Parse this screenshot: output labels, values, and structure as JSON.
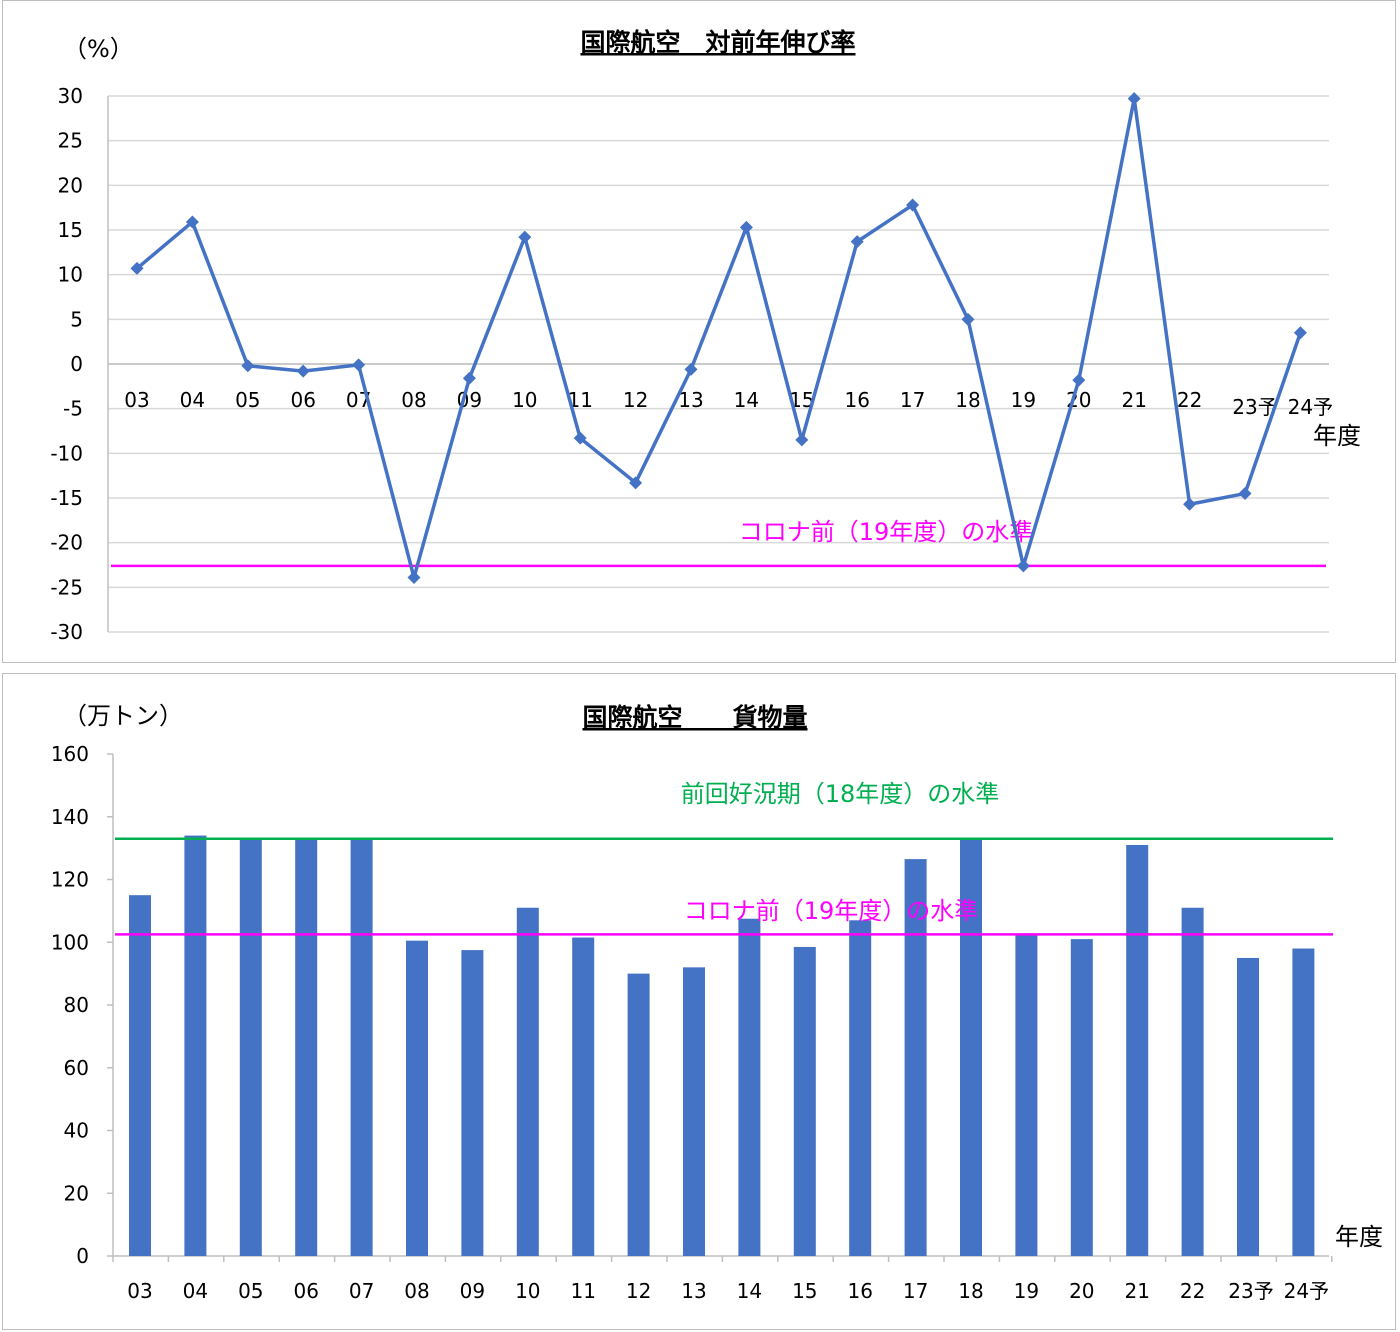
{
  "colors": {
    "series": "#4472C4",
    "magenta": "#FF00FF",
    "green": "#00B050",
    "grid": "#D9D9D9",
    "axis": "#BFBFBF"
  },
  "chart_data": [
    {
      "type": "line",
      "title": "国際航空　対前年伸び率",
      "ylabel": "（%）",
      "xlabel": "年度",
      "ylim": [
        -30,
        30
      ],
      "ytick_step": 5,
      "grid": true,
      "categories": [
        "03",
        "04",
        "05",
        "06",
        "07",
        "08",
        "09",
        "10",
        "11",
        "12",
        "13",
        "14",
        "15",
        "16",
        "17",
        "18",
        "19",
        "20",
        "21",
        "22",
        "23予",
        "24予"
      ],
      "series": [
        {
          "values": [
            10.7,
            15.9,
            -0.2,
            -0.8,
            -0.1,
            -23.9,
            -1.6,
            14.2,
            -8.3,
            -13.3,
            -0.6,
            15.3,
            -8.5,
            13.7,
            17.8,
            5.0,
            -22.6,
            -1.8,
            29.7,
            -15.7,
            -14.5,
            3.5
          ]
        }
      ],
      "reference_lines": [
        {
          "label": "コロナ前（19年度）の水準",
          "value": -22.6,
          "color": "#FF00FF"
        }
      ]
    },
    {
      "type": "bar",
      "title": "国際航空　　貨物量",
      "ylabel": "（万トン）",
      "xlabel": "年度",
      "ylim": [
        0,
        160
      ],
      "ytick_step": 20,
      "grid": false,
      "categories": [
        "03",
        "04",
        "05",
        "06",
        "07",
        "08",
        "09",
        "10",
        "11",
        "12",
        "13",
        "14",
        "15",
        "16",
        "17",
        "18",
        "19",
        "20",
        "21",
        "22",
        "23予",
        "24予"
      ],
      "series": [
        {
          "values": [
            115,
            134,
            133,
            133,
            133,
            100.5,
            97.5,
            111,
            101.5,
            90,
            92,
            107.5,
            98.5,
            107,
            126.5,
            133,
            102.5,
            101,
            131,
            111,
            95,
            98
          ]
        }
      ],
      "reference_lines": [
        {
          "label": "前回好況期（18年度）の水準",
          "value": 133,
          "color": "#00B050"
        },
        {
          "label": "コロナ前（19年度）の水準",
          "value": 102.5,
          "color": "#FF00FF"
        }
      ]
    }
  ]
}
